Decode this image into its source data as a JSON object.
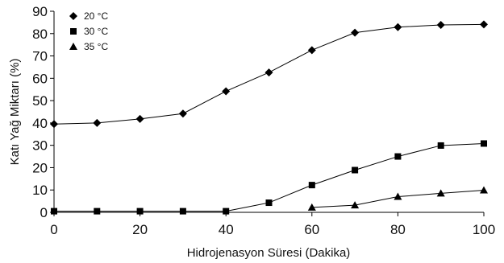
{
  "chart_data": {
    "type": "line",
    "xlabel": "Hidrojenasyon Süresi (Dakika)",
    "ylabel": "Katı Yağ Miktarı (%)",
    "xlim": [
      0,
      100
    ],
    "ylim": [
      0,
      90
    ],
    "xticks": [
      0,
      20,
      40,
      60,
      80,
      100
    ],
    "yticks": [
      0,
      10,
      20,
      30,
      40,
      50,
      60,
      70,
      80,
      90
    ],
    "grid": false,
    "legend_position": "top-left",
    "x": [
      0,
      10,
      20,
      30,
      40,
      50,
      60,
      70,
      80,
      90,
      100
    ],
    "series": [
      {
        "name": "20 °C",
        "marker": "diamond",
        "color": "#000000",
        "values": [
          39.5,
          40,
          41.8,
          44.2,
          54.2,
          62.6,
          72.6,
          80.4,
          82.9,
          83.9,
          84.1
        ]
      },
      {
        "name": "30 °C",
        "marker": "square",
        "color": "#000000",
        "values": [
          0.5,
          0.5,
          0.5,
          0.5,
          0.5,
          4.3,
          12.2,
          18.9,
          25,
          29.9,
          30.8
        ]
      },
      {
        "name": "35 °C",
        "marker": "triangle",
        "color": "#000000",
        "values": [
          null,
          null,
          null,
          null,
          null,
          null,
          2.2,
          3.2,
          7,
          8.5,
          9.9
        ]
      }
    ]
  }
}
